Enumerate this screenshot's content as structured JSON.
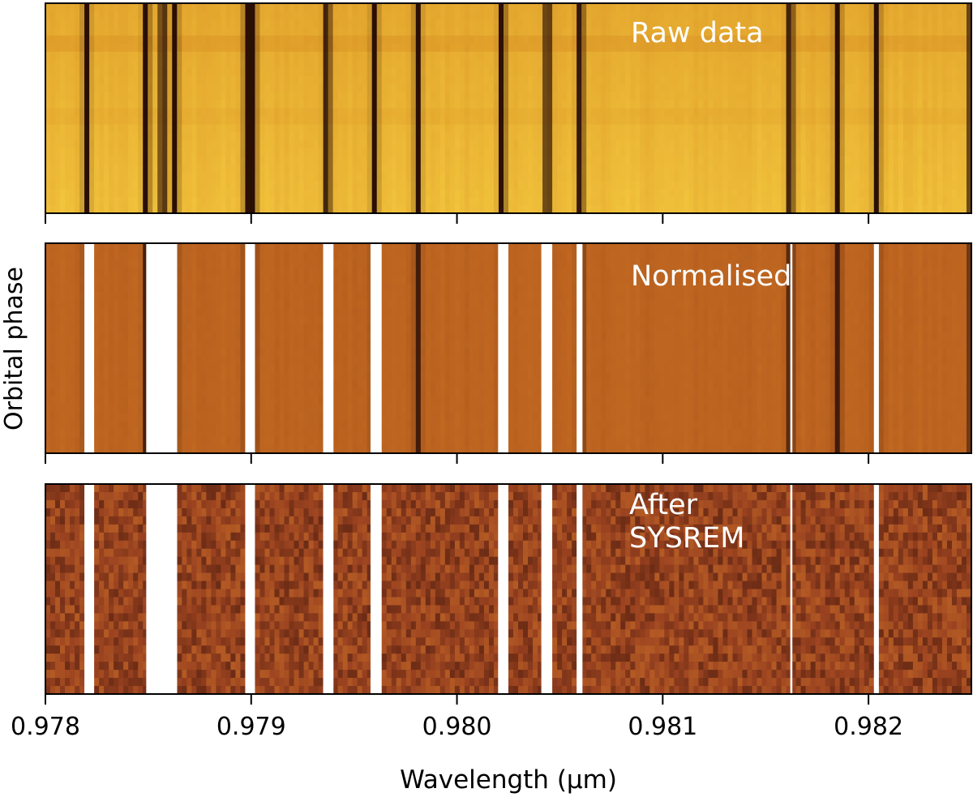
{
  "figure": {
    "ylabel": "Orbital phase",
    "xlabel": "Wavelength (μm)"
  },
  "chart_data": {
    "type": "heatmap",
    "xlim": [
      0.978,
      0.9825
    ],
    "x_ticks": [
      0.978,
      0.979,
      0.98,
      0.981,
      0.982
    ],
    "x_tick_labels": [
      "0.978",
      "0.979",
      "0.980",
      "0.981",
      "0.982"
    ],
    "xlabel": "Wavelength (μm)",
    "ylabel": "Orbital phase",
    "colors": {
      "raw_bright": "#f2c43c",
      "raw_mid": "#d78d22",
      "raw_dark": "#2a0f05",
      "norm_mid": "#bc6420",
      "norm_dark": "#2b0e06",
      "sysrem_mid": "#9b4320"
    },
    "masked_columns": [
      [
        0.9782,
        0.97823
      ],
      [
        0.97849,
        0.97857
      ],
      [
        0.97858,
        0.97864
      ],
      [
        0.97898,
        0.97901
      ],
      [
        0.97935,
        0.9794
      ],
      [
        0.97958,
        0.97962
      ],
      [
        0.9802,
        0.98024
      ],
      [
        0.98041,
        0.98046
      ],
      [
        0.98059,
        0.98061
      ],
      [
        0.98162,
        0.98163
      ],
      [
        0.98204,
        0.98205
      ]
    ],
    "telluric_lines_um": [
      0.9782,
      0.97849,
      0.97857,
      0.97863,
      0.97898,
      0.97901,
      0.97937,
      0.9796,
      0.97981,
      0.98022,
      0.98044,
      0.9806,
      0.98162,
      0.98185,
      0.98204,
      0.9825
    ],
    "panels": [
      {
        "label": "Raw data",
        "stage": "raw"
      },
      {
        "label": "Normalised",
        "stage": "normalised"
      },
      {
        "label": "After\nSYSREM",
        "label_lines": [
          "After",
          "SYSREM"
        ],
        "stage": "sysrem"
      }
    ]
  }
}
